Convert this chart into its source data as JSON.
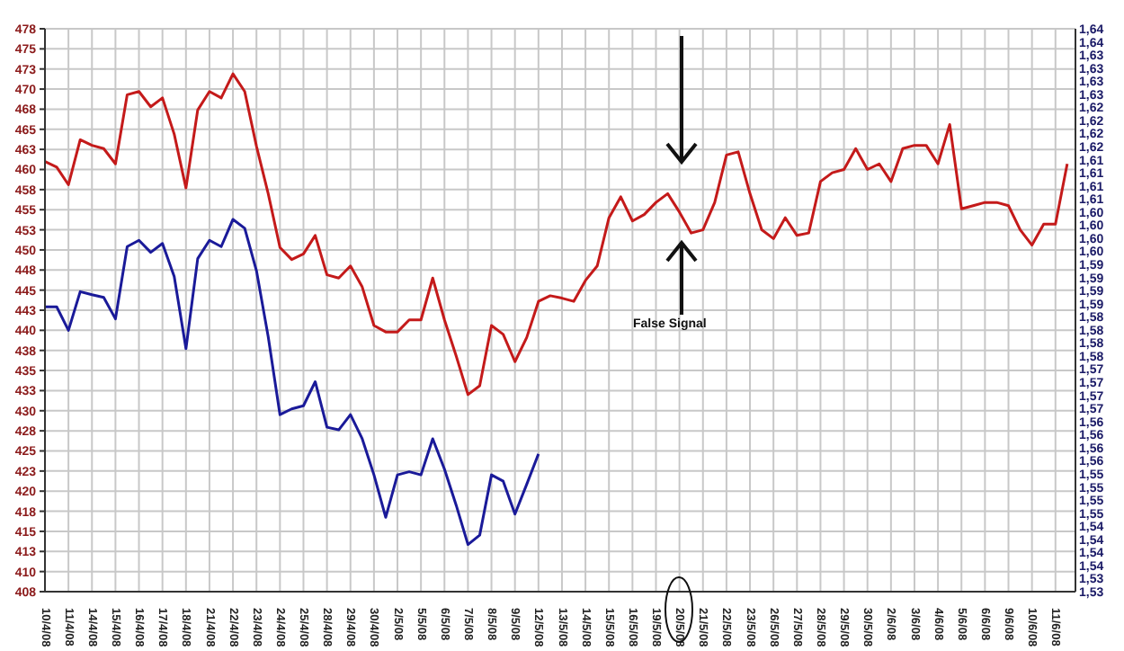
{
  "chart_data": {
    "type": "line",
    "categories": [
      "10/4/08",
      null,
      "11/4/08",
      null,
      "14/4/08",
      null,
      "15/4/08",
      null,
      "16/4/08",
      null,
      "17/4/08",
      null,
      "18/4/08",
      null,
      "21/4/08",
      null,
      "22/4/08",
      null,
      "23/4/08",
      null,
      "24/4/08",
      null,
      "25/4/08",
      null,
      "28/4/08",
      null,
      "29/4/08",
      null,
      "30/4/08",
      null,
      "2/5/08",
      null,
      "5/5/08",
      null,
      "6/5/08",
      null,
      "7/5/08",
      null,
      "8/5/08",
      null,
      "9/5/08",
      null,
      "12/5/08",
      null,
      "13/5/08",
      null,
      "14/5/08",
      null,
      "15/5/08",
      null,
      "16/5/08",
      null,
      "19/5/08",
      null,
      "20/5/08",
      null,
      "21/5/08",
      null,
      "22/5/08",
      null,
      "23/5/08",
      null,
      "26/5/08",
      null,
      "27/5/08",
      null,
      "28/5/08",
      null,
      "29/5/08",
      null,
      "30/5/08",
      null,
      "2/6/08",
      null,
      "3/6/08",
      null,
      "4/6/08",
      null,
      "5/6/08",
      null,
      "6/6/08",
      null,
      "9/6/08",
      null,
      "10/6/08",
      null,
      "11/6/08",
      null
    ],
    "series": [
      {
        "color": "#c41a1a",
        "values": [
          461,
          460.3,
          458.1,
          463.7,
          463,
          462.6,
          460.7,
          469.3,
          469.7,
          467.8,
          468.9,
          464.4,
          457.7,
          467.4,
          469.7,
          468.9,
          471.9,
          469.7,
          462.9,
          457,
          450.3,
          448.8,
          449.5,
          451.8,
          446.9,
          446.5,
          448,
          445.4,
          440.6,
          439.8,
          439.8,
          441.3,
          441.3,
          446.5,
          441.3,
          436.8,
          432,
          433.1,
          440.6,
          439.5,
          436.1,
          439.1,
          443.6,
          444.3,
          444,
          443.6,
          446.2,
          448,
          454,
          456.6,
          453.6,
          454.4,
          455.9,
          457,
          454.7,
          452.1,
          452.5,
          455.9,
          461.8,
          462.2,
          457,
          452.5,
          451.4,
          454,
          451.8,
          452.1,
          458.5,
          459.6,
          460,
          462.6,
          460,
          460.7,
          458.5,
          462.6,
          463,
          463,
          460.7,
          465.6,
          455.1,
          455.5,
          455.9,
          455.9,
          455.5,
          452.5,
          450.6,
          453.2,
          453.2,
          460.7
        ]
      },
      {
        "color": "#1a1a99",
        "axis": "y2",
        "values": [
          1.5844,
          1.5844,
          1.5799,
          1.5873,
          1.5867,
          1.5862,
          1.5821,
          1.5959,
          1.5971,
          1.5948,
          1.5965,
          1.5902,
          1.5764,
          1.5936,
          1.5971,
          1.5959,
          1.6011,
          1.5994,
          1.5913,
          1.5787,
          1.5638,
          1.5649,
          1.5655,
          1.5701,
          1.5614,
          1.5609,
          1.5638,
          1.5592,
          1.5523,
          1.5442,
          1.5523,
          1.5529,
          1.5523,
          1.5592,
          1.5534,
          1.5465,
          1.539,
          1.5408,
          1.5523,
          1.5511,
          1.5448,
          1.5505,
          1.5563,
          null,
          null,
          null,
          null,
          null,
          null,
          null,
          null,
          null,
          null,
          null,
          null,
          null,
          null,
          null,
          null,
          null,
          null,
          null,
          null,
          null,
          null,
          null,
          null,
          null,
          null,
          null,
          null,
          null,
          null,
          null,
          null,
          null,
          null,
          null,
          null,
          null,
          null,
          null,
          null,
          null,
          null,
          null,
          null,
          null
        ]
      }
    ],
    "ylim": [
      407.5,
      477.5
    ],
    "yticks": [
      {
        "value": 407.5,
        "label": "408"
      },
      410,
      {
        "value": 412.5,
        "label": "413"
      },
      415,
      {
        "value": 417.5,
        "label": "418"
      },
      420,
      {
        "value": 422.5,
        "label": "423"
      },
      425,
      {
        "value": 427.5,
        "label": "428"
      },
      430,
      {
        "value": 432.5,
        "label": "433"
      },
      435,
      {
        "value": 437.5,
        "label": "438"
      },
      440,
      {
        "value": 442.5,
        "label": "443"
      },
      445,
      {
        "value": 447.5,
        "label": "448"
      },
      450,
      {
        "value": 452.5,
        "label": "453"
      },
      455,
      {
        "value": 457.5,
        "label": "458"
      },
      460,
      {
        "value": 462.5,
        "label": "463"
      },
      465,
      {
        "value": 467.5,
        "label": "468"
      },
      470,
      {
        "value": 472.5,
        "label": "473"
      },
      475,
      {
        "value": 477.5,
        "label": "478"
      }
    ],
    "y2lim": [
      1.53,
      1.6375
    ],
    "y2ticks": [
      {
        "value": 1.53,
        "label": "1,53"
      },
      {
        "value": 1.5325,
        "label": "1,53"
      },
      {
        "value": 1.535,
        "label": "1,54"
      },
      {
        "value": 1.5375,
        "label": "1,54"
      },
      {
        "value": 1.54,
        "label": "1,54"
      },
      {
        "value": 1.5425,
        "label": "1,54"
      },
      {
        "value": 1.545,
        "label": "1,55"
      },
      {
        "value": 1.5475,
        "label": "1,55"
      },
      {
        "value": 1.55,
        "label": "1,55"
      },
      {
        "value": 1.5525,
        "label": "1,55"
      },
      {
        "value": 1.555,
        "label": "1,56"
      },
      {
        "value": 1.5575,
        "label": "1,56"
      },
      {
        "value": 1.56,
        "label": "1,56"
      },
      {
        "value": 1.5625,
        "label": "1,56"
      },
      {
        "value": 1.565,
        "label": "1,57"
      },
      {
        "value": 1.5675,
        "label": "1,57"
      },
      {
        "value": 1.57,
        "label": "1,57"
      },
      {
        "value": 1.5725,
        "label": "1,57"
      },
      {
        "value": 1.575,
        "label": "1,58"
      },
      {
        "value": 1.5775,
        "label": "1,58"
      },
      {
        "value": 1.58,
        "label": "1,58"
      },
      {
        "value": 1.5825,
        "label": "1,58"
      },
      {
        "value": 1.585,
        "label": "1,59"
      },
      {
        "value": 1.5875,
        "label": "1,59"
      },
      {
        "value": 1.59,
        "label": "1,59"
      },
      {
        "value": 1.5925,
        "label": "1,59"
      },
      {
        "value": 1.595,
        "label": "1,60"
      },
      {
        "value": 1.5975,
        "label": "1,60"
      },
      {
        "value": 1.6,
        "label": "1,60"
      },
      {
        "value": 1.6025,
        "label": "1,60"
      },
      {
        "value": 1.605,
        "label": "1,61"
      },
      {
        "value": 1.6075,
        "label": "1,61"
      },
      {
        "value": 1.61,
        "label": "1,61"
      },
      {
        "value": 1.6125,
        "label": "1,61"
      },
      {
        "value": 1.615,
        "label": "1,62"
      },
      {
        "value": 1.6175,
        "label": "1,62"
      },
      {
        "value": 1.62,
        "label": "1,62"
      },
      {
        "value": 1.6225,
        "label": "1,62"
      },
      {
        "value": 1.625,
        "label": "1,63"
      },
      {
        "value": 1.6275,
        "label": "1,63"
      },
      {
        "value": 1.63,
        "label": "1,63"
      },
      {
        "value": 1.6325,
        "label": "1,63"
      },
      {
        "value": 1.635,
        "label": "1,64"
      },
      {
        "value": 1.6375,
        "label": "1,64"
      }
    ],
    "grid": true,
    "legend": false,
    "marker": "none",
    "line_style": "solid",
    "annotations": [
      "False Signal"
    ]
  }
}
